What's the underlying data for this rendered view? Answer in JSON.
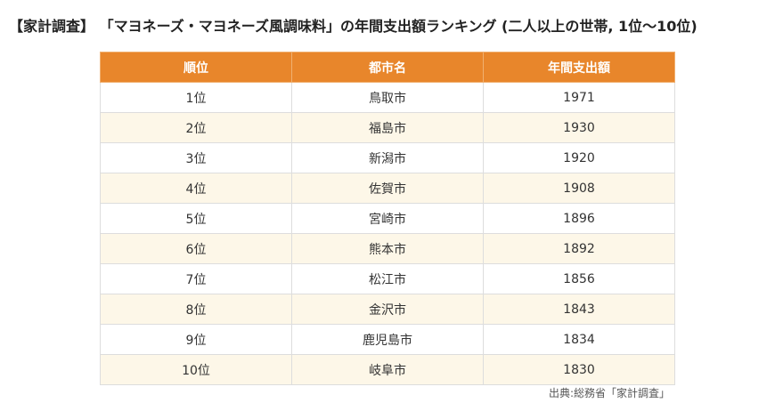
{
  "header": {
    "title": "【家計調査】 「マヨネーズ・マヨネーズ風調味料」の年間支出額ランキング (二人以上の世帯, 1位〜10位)"
  },
  "table": {
    "columns": [
      "順位",
      "都市名",
      "年間支出額"
    ],
    "rows": [
      [
        "1位",
        "鳥取市",
        1971
      ],
      [
        "2位",
        "福島市",
        1930
      ],
      [
        "3位",
        "新潟市",
        1920
      ],
      [
        "4位",
        "佐賀市",
        1908
      ],
      [
        "5位",
        "宮崎市",
        1896
      ],
      [
        "6位",
        "熊本市",
        1892
      ],
      [
        "7位",
        "松江市",
        1856
      ],
      [
        "8位",
        "金沢市",
        1843
      ],
      [
        "9位",
        "鹿児島市",
        1834
      ],
      [
        "10位",
        "岐阜市",
        1830
      ]
    ]
  },
  "footer": {
    "source": "出典:総務省「家計調査」"
  }
}
